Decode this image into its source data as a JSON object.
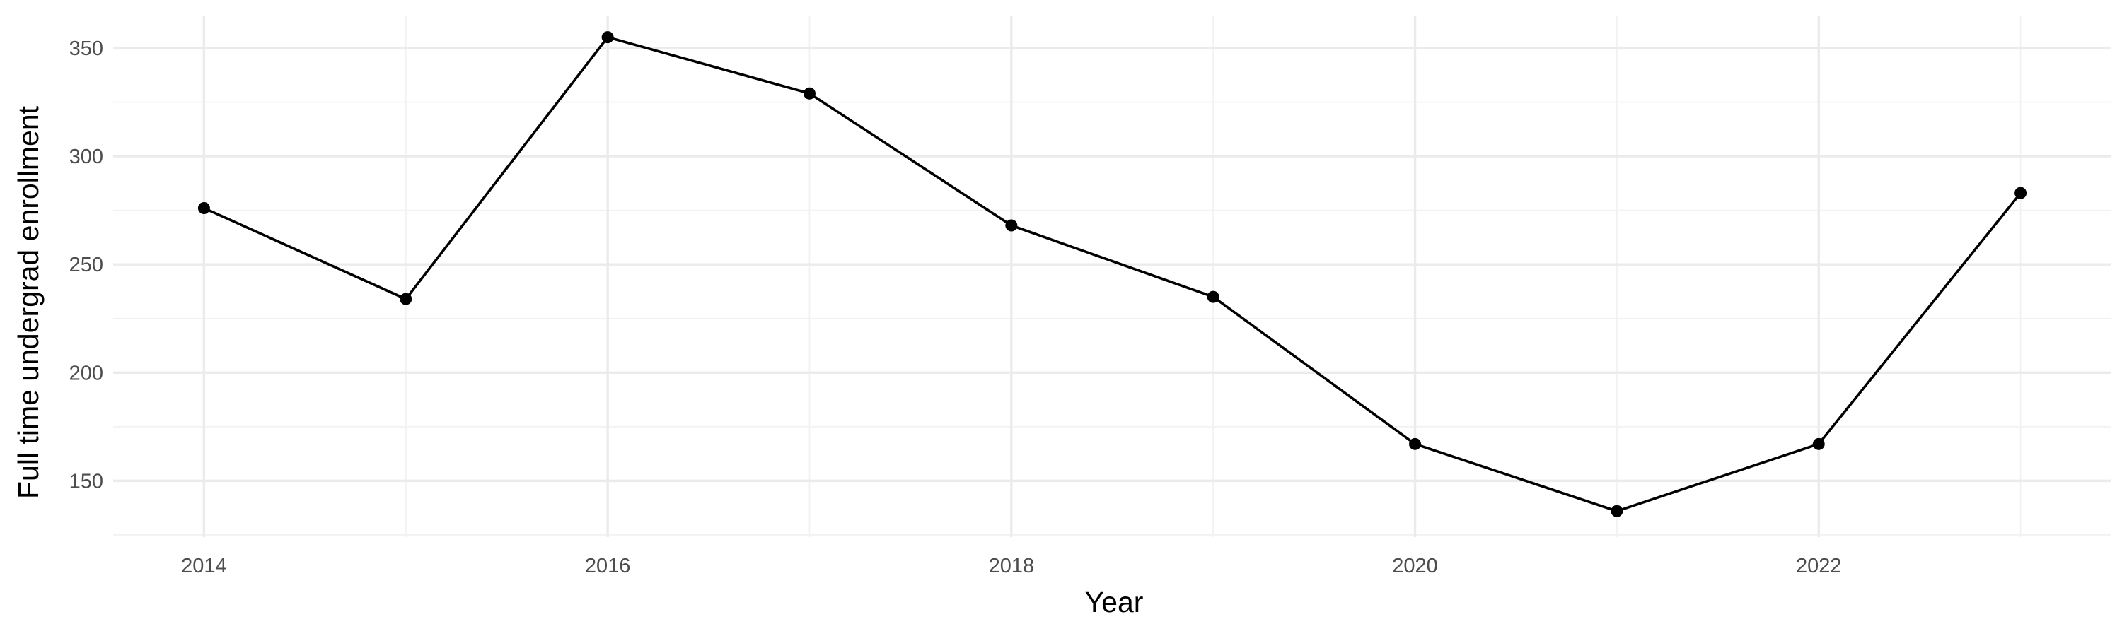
{
  "chart_data": {
    "type": "line",
    "title": "",
    "xlabel": "Year",
    "ylabel": "Full time undergrad enrollment",
    "x": [
      2014,
      2015,
      2016,
      2017,
      2018,
      2019,
      2020,
      2021,
      2022,
      2023
    ],
    "series": [
      {
        "values": [
          276,
          234,
          355,
          329,
          268,
          235,
          167,
          136,
          167,
          283
        ]
      }
    ],
    "xlim": [
      2013.55,
      2023.45
    ],
    "ylim": [
      124,
      365
    ],
    "x_ticks": [
      2014,
      2016,
      2018,
      2020,
      2022
    ],
    "x_tick_labels": [
      "2014",
      "2016",
      "2018",
      "2020",
      "2022"
    ],
    "y_ticks": [
      150,
      200,
      250,
      300,
      350
    ],
    "y_tick_labels": [
      "150",
      "200",
      "250",
      "300",
      "350"
    ],
    "grid": true,
    "legend": "none",
    "colors": {
      "line": "#000000",
      "points": "#000000",
      "grid_major": "#ebebeb",
      "grid_minor": "#f2f2f2",
      "tick_text": "#4d4d4d",
      "background": "#ffffff"
    }
  }
}
